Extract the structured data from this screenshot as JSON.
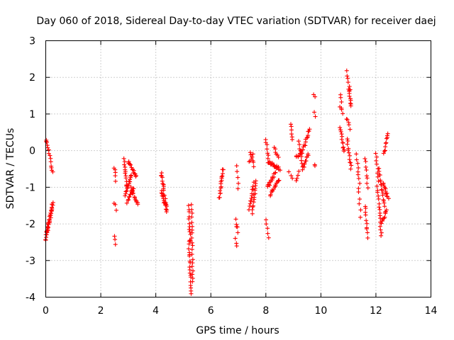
{
  "chart_data": {
    "type": "scatter",
    "title": "Day 060 of 2018, Sidereal Day-to-day VTEC variation (SDTVAR) for receiver daej",
    "xlabel": "GPS time / hours",
    "ylabel": "SDTVAR / TECUs",
    "xlim": [
      0,
      14
    ],
    "ylim": [
      -4,
      3
    ],
    "xticks": [
      "0",
      "2",
      "4",
      "6",
      "8",
      "10",
      "12",
      "14"
    ],
    "yticks": [
      "-4",
      "-3",
      "-2",
      "-1",
      "0",
      "1",
      "2",
      "3"
    ],
    "grid": true,
    "marker": "+",
    "series_color": "#ff0000",
    "segments": [
      {
        "x0": 0.0,
        "y0": -2.45,
        "x1": 0.08,
        "y1": -2.0,
        "n": 12
      },
      {
        "x0": 0.05,
        "y0": -2.2,
        "x1": 0.25,
        "y1": -1.5,
        "n": 18
      },
      {
        "x0": 0.0,
        "y0": 0.3,
        "x1": 0.1,
        "y1": 0.05,
        "n": 6
      },
      {
        "x0": 0.12,
        "y0": -0.1,
        "x1": 0.25,
        "y1": -0.6,
        "n": 8
      },
      {
        "x0": 0.15,
        "y0": -2.0,
        "x1": 0.25,
        "y1": -1.4,
        "n": 8
      },
      {
        "x0": 2.5,
        "y0": -0.45,
        "x1": 2.55,
        "y1": -0.8,
        "n": 5
      },
      {
        "x0": 2.5,
        "y0": -1.4,
        "x1": 2.55,
        "y1": -1.6,
        "n": 3
      },
      {
        "x0": 2.5,
        "y0": -2.3,
        "x1": 2.55,
        "y1": -2.55,
        "n": 3
      },
      {
        "x0": 2.85,
        "y0": -0.2,
        "x1": 2.95,
        "y1": -1.0,
        "n": 12
      },
      {
        "x0": 2.9,
        "y0": -1.2,
        "x1": 3.1,
        "y1": -0.7,
        "n": 15
      },
      {
        "x0": 2.95,
        "y0": -1.4,
        "x1": 3.2,
        "y1": -1.0,
        "n": 12
      },
      {
        "x0": 3.0,
        "y0": -0.3,
        "x1": 3.3,
        "y1": -0.7,
        "n": 14
      },
      {
        "x0": 3.1,
        "y0": -1.0,
        "x1": 3.35,
        "y1": -1.5,
        "n": 12
      },
      {
        "x0": 4.2,
        "y0": -0.6,
        "x1": 4.3,
        "y1": -1.1,
        "n": 10
      },
      {
        "x0": 4.2,
        "y0": -1.1,
        "x1": 4.4,
        "y1": -1.65,
        "n": 14
      },
      {
        "x0": 4.3,
        "y0": -1.2,
        "x1": 4.4,
        "y1": -1.5,
        "n": 6
      },
      {
        "x0": 5.2,
        "y0": -1.5,
        "x1": 5.25,
        "y1": -2.5,
        "n": 12
      },
      {
        "x0": 5.2,
        "y0": -2.5,
        "x1": 5.3,
        "y1": -3.9,
        "n": 18
      },
      {
        "x0": 5.3,
        "y0": -1.5,
        "x1": 5.35,
        "y1": -3.6,
        "n": 20
      },
      {
        "x0": 6.3,
        "y0": -1.3,
        "x1": 6.45,
        "y1": -0.5,
        "n": 16
      },
      {
        "x0": 6.95,
        "y0": -0.45,
        "x1": 7.0,
        "y1": -1.0,
        "n": 5
      },
      {
        "x0": 6.9,
        "y0": -1.9,
        "x1": 7.0,
        "y1": -2.2,
        "n": 5
      },
      {
        "x0": 6.9,
        "y0": -2.4,
        "x1": 6.95,
        "y1": -2.6,
        "n": 3
      },
      {
        "x0": 7.45,
        "y0": -0.05,
        "x1": 7.55,
        "y1": -0.4,
        "n": 6
      },
      {
        "x0": 7.4,
        "y0": -1.6,
        "x1": 7.55,
        "y1": -0.9,
        "n": 12
      },
      {
        "x0": 7.5,
        "y0": -1.7,
        "x1": 7.65,
        "y1": -0.8,
        "n": 14
      },
      {
        "x0": 7.4,
        "y0": -0.3,
        "x1": 7.55,
        "y1": -0.1,
        "n": 5
      },
      {
        "x0": 8.0,
        "y0": 0.3,
        "x1": 8.1,
        "y1": -0.3,
        "n": 8
      },
      {
        "x0": 8.0,
        "y0": -1.9,
        "x1": 8.1,
        "y1": -2.4,
        "n": 5
      },
      {
        "x0": 8.05,
        "y0": -1.0,
        "x1": 8.35,
        "y1": -0.6,
        "n": 14
      },
      {
        "x0": 8.1,
        "y0": -0.3,
        "x1": 8.5,
        "y1": -0.5,
        "n": 18
      },
      {
        "x0": 8.15,
        "y0": -1.2,
        "x1": 8.5,
        "y1": -0.8,
        "n": 14
      },
      {
        "x0": 8.3,
        "y0": 0.1,
        "x1": 8.45,
        "y1": -0.2,
        "n": 6
      },
      {
        "x0": 8.9,
        "y0": 0.75,
        "x1": 8.95,
        "y1": 0.3,
        "n": 6
      },
      {
        "x0": 8.85,
        "y0": -0.6,
        "x1": 8.95,
        "y1": -0.75,
        "n": 3
      },
      {
        "x0": 9.1,
        "y0": -0.8,
        "x1": 9.2,
        "y1": -0.6,
        "n": 4
      },
      {
        "x0": 9.1,
        "y0": -0.2,
        "x1": 9.3,
        "y1": 0.0,
        "n": 8
      },
      {
        "x0": 9.2,
        "y0": 0.25,
        "x1": 9.35,
        "y1": -0.5,
        "n": 10
      },
      {
        "x0": 9.3,
        "y0": -0.1,
        "x1": 9.6,
        "y1": 0.6,
        "n": 14
      },
      {
        "x0": 9.35,
        "y0": -0.45,
        "x1": 9.55,
        "y1": -0.1,
        "n": 10
      },
      {
        "x0": 9.75,
        "y0": 1.55,
        "x1": 9.78,
        "y1": 1.5,
        "n": 2
      },
      {
        "x0": 9.75,
        "y0": 1.05,
        "x1": 9.78,
        "y1": 0.9,
        "n": 2
      },
      {
        "x0": 9.78,
        "y0": -0.35,
        "x1": 9.8,
        "y1": -0.45,
        "n": 2
      },
      {
        "x0": 10.7,
        "y0": 1.5,
        "x1": 10.75,
        "y1": 1.35,
        "n": 3
      },
      {
        "x0": 10.7,
        "y0": 1.2,
        "x1": 10.8,
        "y1": 1.05,
        "n": 4
      },
      {
        "x0": 10.7,
        "y0": 0.6,
        "x1": 10.85,
        "y1": -0.05,
        "n": 12
      },
      {
        "x0": 10.95,
        "y0": 2.15,
        "x1": 11.05,
        "y1": 1.7,
        "n": 6
      },
      {
        "x0": 11.0,
        "y0": 1.7,
        "x1": 11.1,
        "y1": 1.2,
        "n": 10
      },
      {
        "x0": 10.95,
        "y0": 0.9,
        "x1": 11.05,
        "y1": 0.6,
        "n": 5
      },
      {
        "x0": 10.95,
        "y0": 0.3,
        "x1": 11.1,
        "y1": -0.5,
        "n": 12
      },
      {
        "x0": 11.3,
        "y0": -0.1,
        "x1": 11.4,
        "y1": -0.9,
        "n": 8
      },
      {
        "x0": 11.35,
        "y0": -1.0,
        "x1": 11.45,
        "y1": -1.8,
        "n": 6
      },
      {
        "x0": 11.6,
        "y0": -0.2,
        "x1": 11.7,
        "y1": -1.0,
        "n": 8
      },
      {
        "x0": 11.6,
        "y0": -1.5,
        "x1": 11.7,
        "y1": -2.35,
        "n": 10
      },
      {
        "x0": 12.0,
        "y0": -0.05,
        "x1": 12.1,
        "y1": -0.8,
        "n": 8
      },
      {
        "x0": 12.05,
        "y0": -1.0,
        "x1": 12.2,
        "y1": -2.3,
        "n": 16
      },
      {
        "x0": 12.1,
        "y0": -0.5,
        "x1": 12.3,
        "y1": -1.5,
        "n": 16
      },
      {
        "x0": 12.2,
        "y0": -2.0,
        "x1": 12.4,
        "y1": -1.6,
        "n": 10
      },
      {
        "x0": 12.25,
        "y0": -0.9,
        "x1": 12.45,
        "y1": -1.3,
        "n": 12
      },
      {
        "x0": 12.3,
        "y0": -0.1,
        "x1": 12.45,
        "y1": 0.5,
        "n": 10
      }
    ]
  }
}
